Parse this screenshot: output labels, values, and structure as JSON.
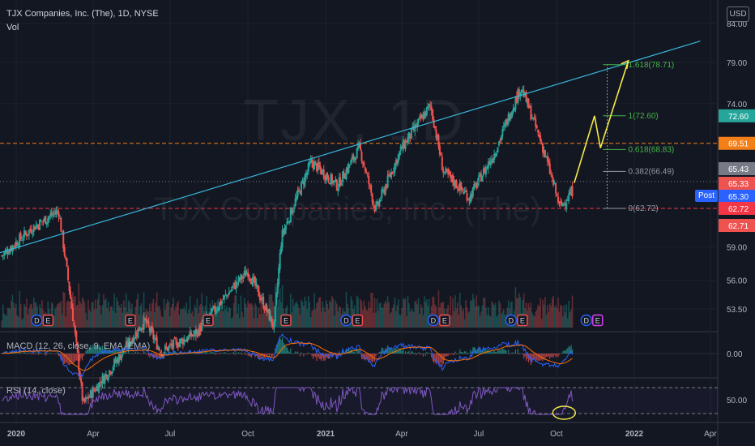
{
  "header": {
    "title": "TJX Companies, Inc. (The), 1D, NYSE",
    "volume_label": "Vol",
    "currency": "USD"
  },
  "watermark": {
    "ticker": "TJX, 1D",
    "company": "TJX Companies, Inc. (The)"
  },
  "indicators": {
    "macd_label": "MACD (12, 26, close, 9, EMA, EMA)",
    "rsi_label": "RSI (14, close)"
  },
  "post_label": "Post",
  "colors": {
    "background": "#131722",
    "up": "#26a69a",
    "down": "#ef5350",
    "trendline": "#38b6d9",
    "projection": "#f5e94a",
    "fib": "#45b649",
    "macd": "#2962ff",
    "signal": "#ff6d00",
    "rsi": "#7e57c2"
  },
  "chart_data": {
    "type": "candlestick",
    "title": "TJX Companies, Inc. (The), 1D, NYSE",
    "y_axis_ticks": [
      "84.00",
      "79.00",
      "74.00",
      "72.60",
      "69.51",
      "65.43",
      "65.33",
      "65.30",
      "62.72",
      "62.71",
      "59.00",
      "56.00",
      "53.50"
    ],
    "x_axis_ticks": [
      "2020",
      "Apr",
      "Jul",
      "Oct",
      "2021",
      "Apr",
      "Jul",
      "Oct",
      "2022",
      "Apr"
    ],
    "price_labels": [
      {
        "value": "72.60",
        "color": "#26a69a"
      },
      {
        "value": "69.51",
        "color": "#f57f17"
      },
      {
        "value": "65.43",
        "color": "#787b86"
      },
      {
        "value": "65.33",
        "color": "#ef5350"
      },
      {
        "value": "65.30",
        "color": "#2962ff"
      },
      {
        "value": "62.72",
        "color": "#f23645"
      },
      {
        "value": "62.71",
        "color": "#ef5350"
      }
    ],
    "price_path": [
      [
        "2019-12-15",
        58.2
      ],
      [
        "2020-01-20",
        60.8
      ],
      [
        "2020-02-20",
        62.5
      ],
      [
        "2020-03-20",
        46.0
      ],
      [
        "2020-04-20",
        48.5
      ],
      [
        "2020-06-01",
        52.5
      ],
      [
        "2020-06-20",
        50.0
      ],
      [
        "2020-08-01",
        51.5
      ],
      [
        "2020-09-15",
        55.5
      ],
      [
        "2020-10-01",
        56.8
      ],
      [
        "2020-11-01",
        52.0
      ],
      [
        "2020-11-10",
        60.0
      ],
      [
        "2020-12-15",
        67.5
      ],
      [
        "2021-01-15",
        65.0
      ],
      [
        "2021-02-10",
        69.0
      ],
      [
        "2021-03-01",
        62.5
      ],
      [
        "2021-04-01",
        69.0
      ],
      [
        "2021-05-05",
        73.8
      ],
      [
        "2021-05-20",
        66.5
      ],
      [
        "2021-06-20",
        63.8
      ],
      [
        "2021-07-20",
        68.5
      ],
      [
        "2021-08-20",
        76.0
      ],
      [
        "2021-09-15",
        69.0
      ],
      [
        "2021-10-05",
        62.8
      ],
      [
        "2021-10-20",
        64.5
      ]
    ],
    "trendline": {
      "from": [
        "2019-12-01",
        58.2
      ],
      "to": [
        "2022-03-20",
        81.7
      ]
    },
    "projection_path": [
      [
        "2021-10-22",
        65.3
      ],
      [
        "2021-11-15",
        72.6
      ],
      [
        "2021-11-22",
        69.0
      ],
      [
        "2021-12-25",
        79.2
      ]
    ],
    "fib_levels": [
      {
        "label": "1.618(78.71)",
        "value": 78.71
      },
      {
        "label": "1(72.60)",
        "value": 72.6
      },
      {
        "label": "0.618(68.83)",
        "value": 68.83
      },
      {
        "label": "0.382(66.49)",
        "value": 66.49
      },
      {
        "label": "0(62.72)",
        "value": 62.72
      }
    ],
    "horizontal_levels": [
      {
        "value": 69.51,
        "style": "dashed",
        "color": "#f57f17"
      },
      {
        "value": 62.72,
        "style": "dashed",
        "color": "#f23645"
      },
      {
        "value": 65.43,
        "style": "dotted",
        "color": "#787b86"
      }
    ],
    "events": [
      {
        "date": "2020-02-01",
        "labels": [
          "D",
          "E"
        ]
      },
      {
        "date": "2020-05-15",
        "labels": [
          "E"
        ]
      },
      {
        "date": "2020-08-15",
        "labels": [
          "E"
        ]
      },
      {
        "date": "2020-11-15",
        "labels": [
          "E"
        ]
      },
      {
        "date": "2021-02-01",
        "labels": [
          "D",
          "E"
        ]
      },
      {
        "date": "2021-05-15",
        "labels": [
          "D",
          "E"
        ]
      },
      {
        "date": "2021-08-15",
        "labels": [
          "D",
          "E"
        ]
      },
      {
        "date": "2021-11-12",
        "labels": [
          "D",
          "E"
        ]
      }
    ],
    "macd_axis": [
      "0.00"
    ],
    "rsi_axis": [
      "50.00"
    ]
  }
}
